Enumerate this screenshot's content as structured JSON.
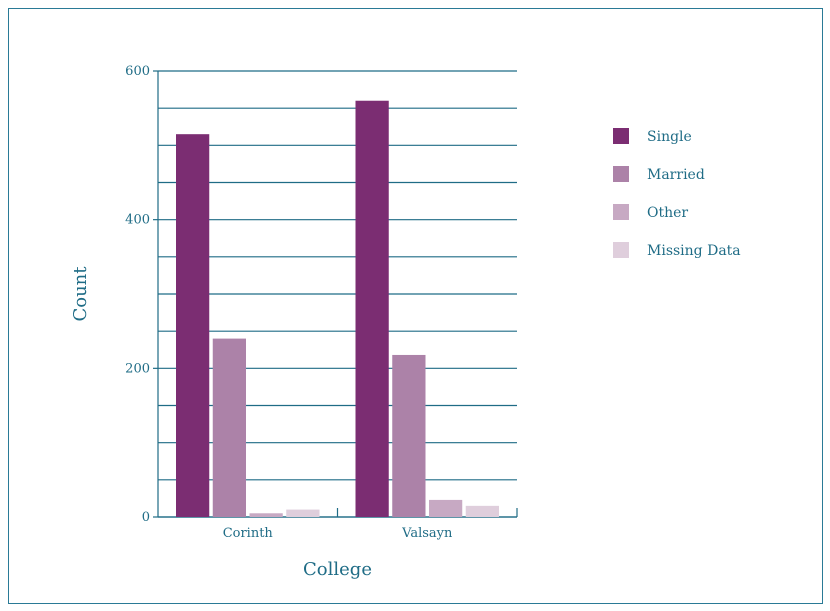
{
  "chart_data": {
    "type": "bar",
    "title": "",
    "xlabel": "College",
    "ylabel": "Count",
    "categories": [
      "Corinth",
      "Valsayn"
    ],
    "series": [
      {
        "name": "Single",
        "color": "#7b2d72",
        "values": [
          515,
          560
        ]
      },
      {
        "name": "Married",
        "color": "#ac82a8",
        "values": [
          240,
          218
        ]
      },
      {
        "name": "Other",
        "color": "#c7a9c3",
        "values": [
          5,
          23
        ]
      },
      {
        "name": "Missing Data",
        "color": "#dfcedc",
        "values": [
          10,
          15
        ]
      }
    ],
    "ylim": [
      0,
      600
    ],
    "yticks": [
      0,
      200,
      400,
      600
    ],
    "grid": true,
    "legend_position": "right"
  }
}
